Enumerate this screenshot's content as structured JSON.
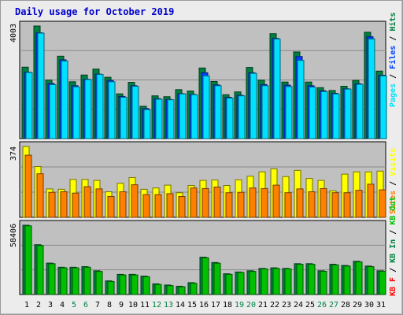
{
  "title": "Daily usage for October 2019",
  "colors": {
    "hits": "#008040",
    "files": "#0040ff",
    "pages": "#00e0ff",
    "visits": "#ffff00",
    "sites": "#ff8000",
    "kbin": "#008040",
    "kbout": "#00c000",
    "kbf": "#ff0000",
    "weekend_label": "#008040",
    "weekday_label": "#000000"
  },
  "legends": {
    "top": [
      {
        "text": "Pages",
        "color": "#00e0ff"
      },
      {
        "text": "Files",
        "color": "#0040ff"
      },
      {
        "text": "Hits",
        "color": "#008040"
      }
    ],
    "middle": [
      {
        "text": "Sites",
        "color": "#ff8000"
      },
      {
        "text": "Visits",
        "color": "#ffff00"
      }
    ],
    "bottom": [
      {
        "text": "KB F",
        "color": "#ff0000"
      },
      {
        "text": "KB In",
        "color": "#008040"
      },
      {
        "text": "KB Out",
        "color": "#00c000"
      }
    ]
  },
  "chart_data": [
    {
      "type": "bar",
      "name": "hits-files-pages",
      "ymax_label": "4003",
      "ylim": [
        0,
        4003
      ],
      "categories": [
        "1",
        "2",
        "3",
        "4",
        "5",
        "6",
        "7",
        "8",
        "9",
        "10",
        "11",
        "12",
        "13",
        "14",
        "15",
        "16",
        "17",
        "18",
        "19",
        "20",
        "21",
        "22",
        "23",
        "24",
        "25",
        "26",
        "27",
        "28",
        "29",
        "30",
        "31"
      ],
      "series": [
        {
          "name": "Hits",
          "values": [
            2540,
            4003,
            2080,
            2930,
            2020,
            2260,
            2470,
            2180,
            1590,
            2000,
            1150,
            1520,
            1490,
            1740,
            1690,
            2510,
            2030,
            1560,
            1660,
            2530,
            2080,
            3730,
            2010,
            3080,
            2010,
            1810,
            1710,
            1860,
            2070,
            3780,
            2400
          ]
        },
        {
          "name": "Files",
          "values": [
            2360,
            3760,
            1960,
            2800,
            1880,
            2110,
            2290,
            2070,
            1500,
            1880,
            1070,
            1420,
            1390,
            1600,
            1570,
            2340,
            1910,
            1470,
            1540,
            2340,
            1920,
            3560,
            1900,
            2920,
            1880,
            1700,
            1610,
            1770,
            1950,
            3620,
            2250
          ]
        },
        {
          "name": "Pages",
          "values": [
            2350,
            3750,
            1920,
            2760,
            1840,
            2100,
            2280,
            2020,
            1470,
            1860,
            1030,
            1400,
            1380,
            1590,
            1560,
            2230,
            1880,
            1440,
            1520,
            2320,
            1880,
            3540,
            1850,
            2780,
            1830,
            1670,
            1590,
            1760,
            1930,
            3540,
            2230
          ]
        }
      ]
    },
    {
      "type": "bar",
      "name": "visits-sites",
      "ymax_label": "374",
      "ylim": [
        0,
        374
      ],
      "categories": [
        "1",
        "2",
        "3",
        "4",
        "5",
        "6",
        "7",
        "8",
        "9",
        "10",
        "11",
        "12",
        "13",
        "14",
        "15",
        "16",
        "17",
        "18",
        "19",
        "20",
        "21",
        "22",
        "23",
        "24",
        "25",
        "26",
        "27",
        "28",
        "29",
        "30",
        "31"
      ],
      "series": [
        {
          "name": "Visits",
          "values": [
            374,
            268,
            150,
            148,
            200,
            200,
            195,
            135,
            180,
            210,
            148,
            155,
            170,
            130,
            168,
            195,
            197,
            168,
            198,
            217,
            240,
            256,
            215,
            248,
            205,
            195,
            140,
            228,
            240,
            240,
            244
          ]
        },
        {
          "name": "Sites",
          "values": [
            328,
            230,
            132,
            135,
            128,
            162,
            150,
            110,
            135,
            172,
            120,
            120,
            125,
            110,
            155,
            152,
            160,
            130,
            132,
            155,
            152,
            170,
            130,
            150,
            135,
            152,
            130,
            130,
            143,
            175,
            145
          ]
        }
      ]
    },
    {
      "type": "bar",
      "name": "kb",
      "ymax_label": "58406",
      "ylim": [
        0,
        58406
      ],
      "categories": [
        "1",
        "2",
        "3",
        "4",
        "5",
        "6",
        "7",
        "8",
        "9",
        "10",
        "11",
        "12",
        "13",
        "14",
        "15",
        "16",
        "17",
        "18",
        "19",
        "20",
        "21",
        "22",
        "23",
        "24",
        "25",
        "26",
        "27",
        "28",
        "29",
        "30",
        "31"
      ],
      "series": [
        {
          "name": "KB In",
          "values": [
            58406,
            42000,
            26500,
            23000,
            23000,
            23500,
            20000,
            11500,
            17000,
            17000,
            15500,
            9000,
            8000,
            7000,
            10000,
            31500,
            27000,
            17500,
            19000,
            20000,
            22000,
            22500,
            22000,
            26000,
            26000,
            20000,
            25500,
            24500,
            28000,
            24000,
            20000
          ]
        },
        {
          "name": "KB Out",
          "values": [
            57900,
            41300,
            26000,
            22500,
            22500,
            23000,
            19500,
            11000,
            16500,
            16500,
            15000,
            8500,
            7500,
            6500,
            9500,
            31000,
            26400,
            17000,
            18600,
            19500,
            21600,
            22000,
            21600,
            25500,
            25500,
            19600,
            25000,
            24000,
            27500,
            23500,
            19600
          ]
        }
      ]
    }
  ]
}
